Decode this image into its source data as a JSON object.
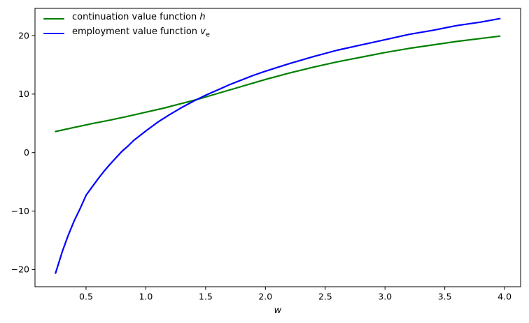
{
  "figure": {
    "xlabel": "w",
    "legend": [
      {
        "prefix": "continuation value function ",
        "math": "h",
        "sub": "",
        "color": "#008000"
      },
      {
        "prefix": "employment value function ",
        "math": "v",
        "sub": "e",
        "color": "#0000ff"
      }
    ]
  },
  "chart_data": {
    "type": "line",
    "title": "",
    "xlabel": "w",
    "ylabel": "",
    "grid": false,
    "legend_position": "upper left",
    "xlim": [
      0.073,
      4.134
    ],
    "ylim": [
      -22.93,
      24.65
    ],
    "xticks": {
      "values": [
        0.5,
        1.0,
        1.5,
        2.0,
        2.5,
        3.0,
        3.5,
        4.0
      ],
      "labels": [
        "0.5",
        "1.0",
        "1.5",
        "2.0",
        "2.5",
        "3.0",
        "3.5",
        "4.0"
      ]
    },
    "yticks": {
      "values": [
        -20,
        -10,
        0,
        10,
        20
      ],
      "labels": [
        "−20",
        "−10",
        "0",
        "10",
        "20"
      ]
    },
    "series": [
      {
        "name": "continuation value function h",
        "color": "#008000",
        "line_width": 2.2,
        "x": [
          0.245,
          0.4,
          0.55,
          0.7,
          0.85,
          1.0,
          1.15,
          1.3,
          1.45,
          1.6,
          1.75,
          1.9,
          2.0,
          2.2,
          2.4,
          2.6,
          2.8,
          3.0,
          3.2,
          3.4,
          3.6,
          3.8,
          3.96
        ],
        "y": [
          3.6,
          4.3,
          4.95,
          5.55,
          6.2,
          6.9,
          7.6,
          8.4,
          9.2,
          10.1,
          11.0,
          11.9,
          12.5,
          13.6,
          14.6,
          15.5,
          16.3,
          17.1,
          17.8,
          18.4,
          19.0,
          19.5,
          19.9
        ]
      },
      {
        "name": "employment value function v_e",
        "color": "#0000ff",
        "line_width": 2.2,
        "x": [
          0.245,
          0.3,
          0.35,
          0.4,
          0.45,
          0.5,
          0.55,
          0.6,
          0.65,
          0.7,
          0.75,
          0.8,
          0.85,
          0.9,
          0.95,
          1.0,
          1.1,
          1.2,
          1.3,
          1.4,
          1.5,
          1.6,
          1.7,
          1.8,
          1.9,
          2.0,
          2.2,
          2.4,
          2.6,
          2.8,
          3.0,
          3.2,
          3.4,
          3.6,
          3.8,
          3.96
        ],
        "y": [
          -20.6,
          -17.0,
          -14.2,
          -11.7,
          -9.6,
          -7.3,
          -5.9,
          -4.5,
          -3.2,
          -2.0,
          -0.9,
          0.2,
          1.1,
          2.1,
          2.9,
          3.7,
          5.2,
          6.5,
          7.7,
          8.8,
          9.8,
          10.7,
          11.6,
          12.4,
          13.2,
          13.9,
          15.2,
          16.4,
          17.5,
          18.4,
          19.3,
          20.2,
          20.9,
          21.7,
          22.3,
          22.9
        ]
      }
    ]
  }
}
